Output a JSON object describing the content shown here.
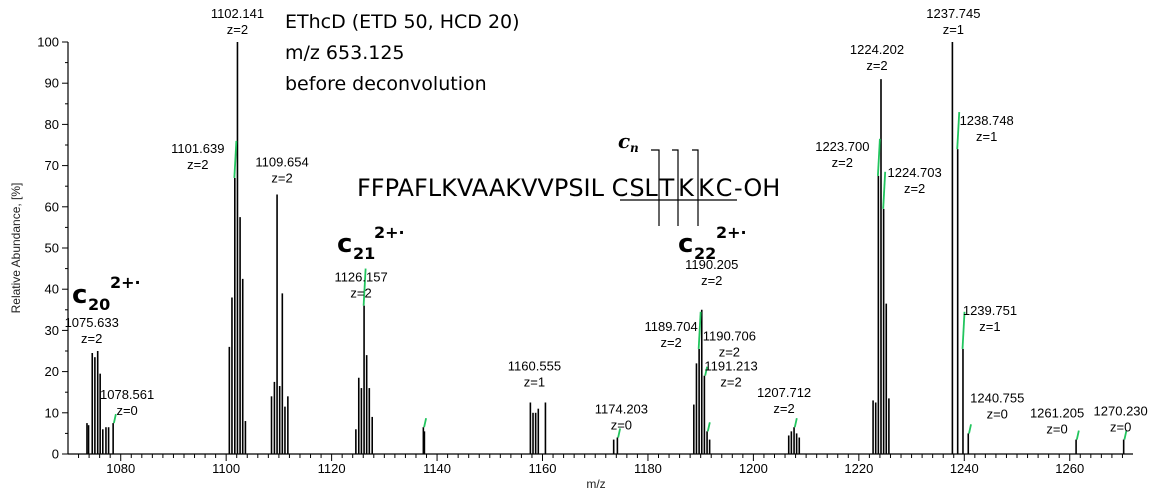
{
  "chart_data": {
    "type": "bar",
    "subtype": "mass-spectrum-stick",
    "xlabel": "m/z",
    "ylabel": "Relative Abundance, [%]",
    "xlim": [
      1070,
      1272
    ],
    "ylim": [
      0,
      100
    ],
    "x_ticks": [
      "1080",
      "1100",
      "1120",
      "1140",
      "1160",
      "1180",
      "1200",
      "1220",
      "1240",
      "1260"
    ],
    "y_ticks": [
      "0",
      "10",
      "20",
      "30",
      "40",
      "50",
      "60",
      "70",
      "80",
      "90",
      "100"
    ],
    "grid": false,
    "info_lines": [
      "EThcD (ETD 50, HCD 20)",
      "m/z 653.125",
      "before deconvolution"
    ],
    "sequence": {
      "prefix": "FFPAFLKVAAKVVPSIL",
      "marked": [
        "C",
        "S",
        "L",
        "T",
        "K",
        "K",
        "C"
      ],
      "suffix": "-OH",
      "cleavage_label": "c",
      "cleavage_label_sub": "n"
    },
    "fragment_labels": [
      {
        "main": "c",
        "sub": "20",
        "sup": "2+·"
      },
      {
        "main": "c",
        "sub": "21",
        "sup": "2+·"
      },
      {
        "main": "c",
        "sub": "22",
        "sup": "2+·"
      }
    ],
    "peaks": [
      {
        "mz": 1073.6,
        "intensity": 7.5
      },
      {
        "mz": 1073.9,
        "intensity": 7
      },
      {
        "mz": 1074.6,
        "intensity": 24.5
      },
      {
        "mz": 1075.1,
        "intensity": 23.5
      },
      {
        "mz": 1075.633,
        "intensity": 25
      },
      {
        "mz": 1076.1,
        "intensity": 19.5
      },
      {
        "mz": 1076.6,
        "intensity": 6
      },
      {
        "mz": 1077.2,
        "intensity": 6.5
      },
      {
        "mz": 1077.7,
        "intensity": 6.5
      },
      {
        "mz": 1078.561,
        "intensity": 7.5
      },
      {
        "mz": 1100.6,
        "intensity": 26
      },
      {
        "mz": 1101.1,
        "intensity": 38
      },
      {
        "mz": 1101.639,
        "intensity": 67
      },
      {
        "mz": 1102.141,
        "intensity": 100
      },
      {
        "mz": 1102.64,
        "intensity": 57.5
      },
      {
        "mz": 1103.14,
        "intensity": 42.5
      },
      {
        "mz": 1103.65,
        "intensity": 8
      },
      {
        "mz": 1108.6,
        "intensity": 14
      },
      {
        "mz": 1109.15,
        "intensity": 17.5
      },
      {
        "mz": 1109.654,
        "intensity": 63
      },
      {
        "mz": 1110.15,
        "intensity": 16.5
      },
      {
        "mz": 1110.65,
        "intensity": 39
      },
      {
        "mz": 1111.15,
        "intensity": 11.5
      },
      {
        "mz": 1111.7,
        "intensity": 14
      },
      {
        "mz": 1124.6,
        "intensity": 6
      },
      {
        "mz": 1125.15,
        "intensity": 18.5
      },
      {
        "mz": 1125.65,
        "intensity": 16
      },
      {
        "mz": 1126.157,
        "intensity": 36
      },
      {
        "mz": 1126.65,
        "intensity": 24
      },
      {
        "mz": 1127.15,
        "intensity": 16
      },
      {
        "mz": 1127.7,
        "intensity": 9
      },
      {
        "mz": 1137.4,
        "intensity": 6.5
      },
      {
        "mz": 1137.6,
        "intensity": 5.5
      },
      {
        "mz": 1157.7,
        "intensity": 12.5
      },
      {
        "mz": 1158.2,
        "intensity": 10
      },
      {
        "mz": 1158.7,
        "intensity": 10
      },
      {
        "mz": 1159.2,
        "intensity": 11
      },
      {
        "mz": 1160.555,
        "intensity": 12.5
      },
      {
        "mz": 1173.5,
        "intensity": 3.5
      },
      {
        "mz": 1174.203,
        "intensity": 4
      },
      {
        "mz": 1188.7,
        "intensity": 12
      },
      {
        "mz": 1189.2,
        "intensity": 22
      },
      {
        "mz": 1189.704,
        "intensity": 25.5
      },
      {
        "mz": 1190.205,
        "intensity": 35
      },
      {
        "mz": 1190.706,
        "intensity": 19
      },
      {
        "mz": 1191.213,
        "intensity": 5.5
      },
      {
        "mz": 1191.7,
        "intensity": 3.5
      },
      {
        "mz": 1206.7,
        "intensity": 4.5
      },
      {
        "mz": 1207.2,
        "intensity": 5.5
      },
      {
        "mz": 1207.712,
        "intensity": 6.5
      },
      {
        "mz": 1208.2,
        "intensity": 5
      },
      {
        "mz": 1208.7,
        "intensity": 4
      },
      {
        "mz": 1222.7,
        "intensity": 13
      },
      {
        "mz": 1223.2,
        "intensity": 12.5
      },
      {
        "mz": 1223.7,
        "intensity": 67.5
      },
      {
        "mz": 1224.202,
        "intensity": 91
      },
      {
        "mz": 1224.703,
        "intensity": 59.5
      },
      {
        "mz": 1225.2,
        "intensity": 36.5
      },
      {
        "mz": 1225.7,
        "intensity": 13.5
      },
      {
        "mz": 1237.745,
        "intensity": 100
      },
      {
        "mz": 1238.748,
        "intensity": 74
      },
      {
        "mz": 1239.751,
        "intensity": 25.5
      },
      {
        "mz": 1240.755,
        "intensity": 5
      },
      {
        "mz": 1261.205,
        "intensity": 3.5
      },
      {
        "mz": 1270.23,
        "intensity": 3.5
      }
    ],
    "annotations": [
      {
        "mz": "1102.141",
        "z": "z=2",
        "x": 1102.141,
        "y": 100
      },
      {
        "mz": "1101.639",
        "z": "z=2",
        "x": 1101.639,
        "y": 67
      },
      {
        "mz": "1109.654",
        "z": "z=2",
        "x": 1109.654,
        "y": 63
      },
      {
        "mz": "1075.633",
        "z": "z=2",
        "x": 1075.633,
        "y": 25
      },
      {
        "mz": "1078.561",
        "z": "z=0",
        "x": 1078.561,
        "y": 7.5
      },
      {
        "mz": "1126.157",
        "z": "z=2",
        "x": 1126.157,
        "y": 36
      },
      {
        "mz": "1160.555",
        "z": "z=1",
        "x": 1160.555,
        "y": 12.5
      },
      {
        "mz": "1174.203",
        "z": "z=0",
        "x": 1174.203,
        "y": 4
      },
      {
        "mz": "1190.205",
        "z": "z=2",
        "x": 1190.205,
        "y": 35
      },
      {
        "mz": "1189.704",
        "z": "z=2",
        "x": 1189.704,
        "y": 25.5
      },
      {
        "mz": "1190.706",
        "z": "z=2",
        "x": 1190.706,
        "y": 19
      },
      {
        "mz": "1191.213",
        "z": "z=2",
        "x": 1191.213,
        "y": 5.5
      },
      {
        "mz": "1207.712",
        "z": "z=2",
        "x": 1207.712,
        "y": 6.5
      },
      {
        "mz": "1223.700",
        "z": "z=2",
        "x": 1223.7,
        "y": 67.5
      },
      {
        "mz": "1224.202",
        "z": "z=2",
        "x": 1224.202,
        "y": 91
      },
      {
        "mz": "1224.703",
        "z": "z=2",
        "x": 1224.703,
        "y": 59.5
      },
      {
        "mz": "1237.745",
        "z": "z=1",
        "x": 1237.745,
        "y": 100
      },
      {
        "mz": "1238.748",
        "z": "z=1",
        "x": 1238.748,
        "y": 74
      },
      {
        "mz": "1239.751",
        "z": "z=1",
        "x": 1239.751,
        "y": 25.5
      },
      {
        "mz": "1240.755",
        "z": "z=0",
        "x": 1240.755,
        "y": 5
      },
      {
        "mz": "1261.205",
        "z": "z=0",
        "x": 1261.205,
        "y": 3.5
      },
      {
        "mz": "1270.230",
        "z": "z=0",
        "x": 1270.23,
        "y": 3.5
      }
    ],
    "colors": {
      "peaks": "#000000",
      "isotope_fit": "#22c55e",
      "axis": "#000000"
    }
  }
}
